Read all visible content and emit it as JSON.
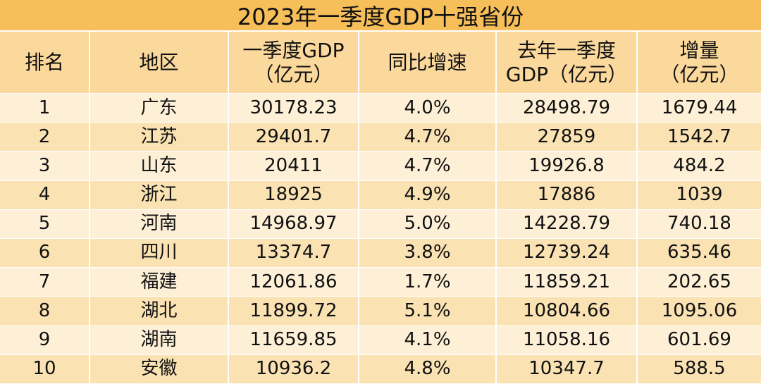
{
  "title": "2023年一季度GDP十强省份",
  "table": {
    "columns": [
      [
        "排名"
      ],
      [
        "地区"
      ],
      [
        "一季度GDP",
        "（亿元）"
      ],
      [
        "同比增速"
      ],
      [
        "去年一季度",
        "GDP（亿元）"
      ],
      [
        "增量",
        "（亿元）"
      ]
    ],
    "rows": [
      [
        "1",
        "广东",
        "30178.23",
        "4.0%",
        "28498.79",
        "1679.44"
      ],
      [
        "2",
        "江苏",
        "29401.7",
        "4.7%",
        "27859",
        "1542.7"
      ],
      [
        "3",
        "山东",
        "20411",
        "4.7%",
        "19926.8",
        "484.2"
      ],
      [
        "4",
        "浙江",
        "18925",
        "4.9%",
        "17886",
        "1039"
      ],
      [
        "5",
        "河南",
        "14968.97",
        "5.0%",
        "14228.79",
        "740.18"
      ],
      [
        "6",
        "四川",
        "13374.7",
        "3.8%",
        "12739.24",
        "635.46"
      ],
      [
        "7",
        "福建",
        "12061.86",
        "1.7%",
        "11859.21",
        "202.65"
      ],
      [
        "8",
        "湖北",
        "11899.72",
        "5.1%",
        "10804.66",
        "1095.06"
      ],
      [
        "9",
        "湖南",
        "11659.85",
        "4.1%",
        "11058.16",
        "601.69"
      ],
      [
        "10",
        "安徽",
        "10936.2",
        "4.8%",
        "10347.7",
        "588.5"
      ]
    ]
  }
}
